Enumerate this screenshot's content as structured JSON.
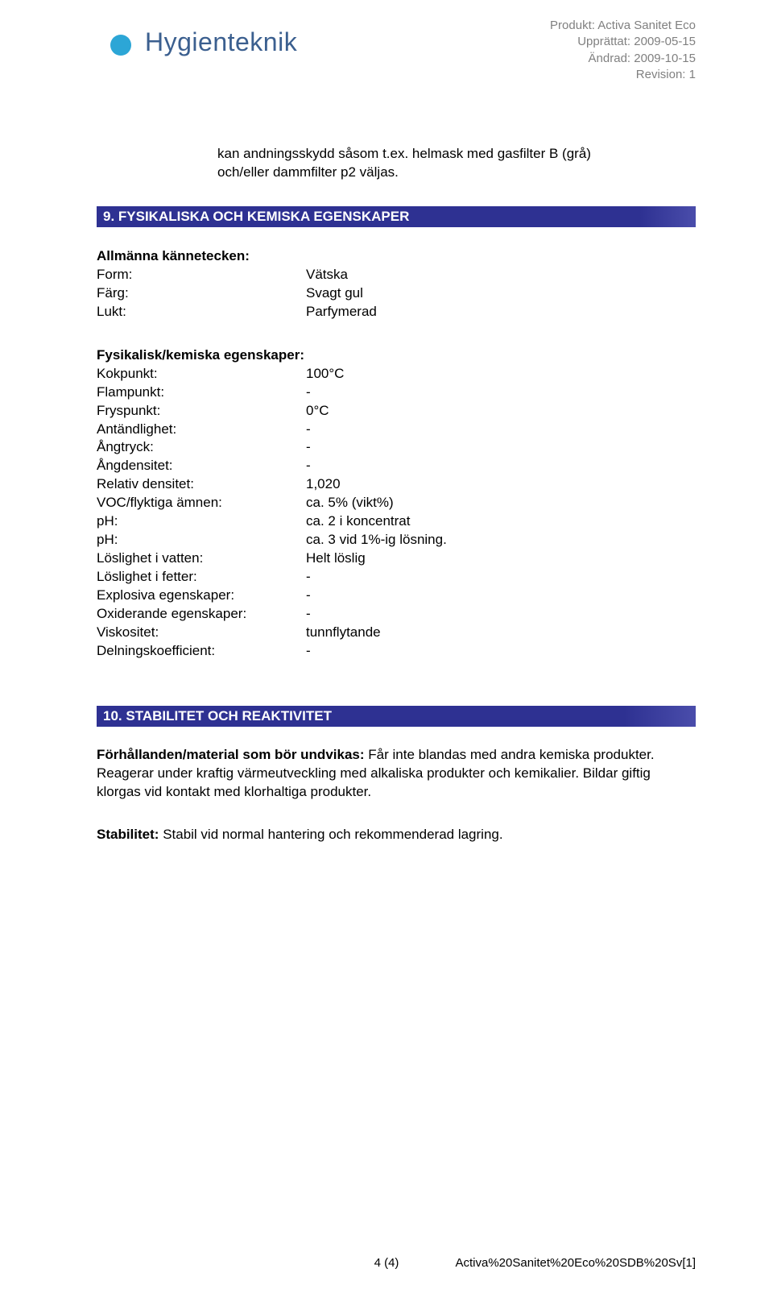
{
  "header": {
    "product_label": "Produkt:",
    "product_value": "Activa Sanitet Eco",
    "created_label": "Upprättat:",
    "created_value": "2009-05-15",
    "changed_label": "Ändrad:",
    "changed_value": "2009-10-15",
    "revision_label": "Revision:",
    "revision_value": "1"
  },
  "logo": {
    "brand_text": "Hygienteknik",
    "outer_color": "#2e4a7a",
    "inner_color": "#2ca6d6"
  },
  "intro_text": "kan andningsskydd såsom t.ex. helmask med gasfilter B (grå) och/eller dammfilter p2 väljas.",
  "section9": {
    "title": "9. FYSIKALISKA OCH KEMISKA EGENSKAPER",
    "bar_color": "#2e3192",
    "general_heading": "Allmänna kännetecken:",
    "general": [
      {
        "key": "Form:",
        "val": "Vätska"
      },
      {
        "key": "Färg:",
        "val": "Svagt gul"
      },
      {
        "key": "Lukt:",
        "val": "Parfymerad"
      }
    ],
    "phys_heading": "Fysikalisk/kemiska egenskaper:",
    "phys": [
      {
        "key": "Kokpunkt:",
        "val": "100°C"
      },
      {
        "key": "Flampunkt:",
        "val": "-"
      },
      {
        "key": "Fryspunkt:",
        "val": "0°C"
      },
      {
        "key": "Antändlighet:",
        "val": "-"
      },
      {
        "key": "Ångtryck:",
        "val": "-"
      },
      {
        "key": "Ångdensitet:",
        "val": "-"
      },
      {
        "key": "Relativ densitet:",
        "val": "1,020"
      },
      {
        "key": "VOC/flyktiga ämnen:",
        "val": "ca. 5% (vikt%)"
      },
      {
        "key": "pH:",
        "val": "ca. 2 i koncentrat"
      },
      {
        "key": "pH:",
        "val": "ca. 3 vid 1%-ig lösning."
      },
      {
        "key": "Löslighet i vatten:",
        "val": "Helt löslig"
      },
      {
        "key": "Löslighet i fetter:",
        "val": "-"
      },
      {
        "key": "Explosiva egenskaper:",
        "val": "-"
      },
      {
        "key": "Oxiderande egenskaper:",
        "val": "-"
      },
      {
        "key": "Viskositet:",
        "val": "tunnflytande"
      },
      {
        "key": "Delningskoefficient:",
        "val": "-"
      }
    ]
  },
  "section10": {
    "title": "10. STABILITET OCH REAKTIVITET",
    "bar_color": "#2e3192",
    "para1_label": "Förhållanden/material som bör undvikas:",
    "para1_text": "Får inte blandas med andra kemiska produkter. Reagerar under kraftig värmeutveckling med alkaliska produkter och kemikalier. Bildar giftig klorgas vid kontakt med klorhaltiga produkter.",
    "para2_label": "Stabilitet:",
    "para2_text": "Stabil vid normal hantering och rekommenderad lagring."
  },
  "footer": {
    "page": "4 (4)",
    "right": "Activa%20Sanitet%20Eco%20SDB%20Sv[1]"
  }
}
